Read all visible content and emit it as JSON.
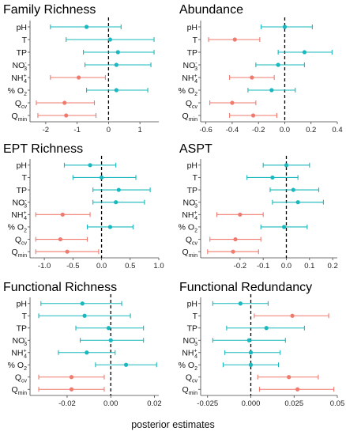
{
  "figure": {
    "xlabel": "posterior estimates"
  },
  "colors": {
    "positive": "#19b8be",
    "negative": "#f07a6e",
    "zero_line": "#000000",
    "axis": "#444444"
  },
  "chart_data": [
    {
      "type": "forest",
      "title": "Family Richness",
      "xlim": [
        -2.5,
        1.6
      ],
      "ticks": [
        -2,
        -1,
        0,
        1
      ],
      "tick_labels": [
        "-2",
        "-1",
        "0",
        "1"
      ],
      "rows": [
        {
          "label": "pH",
          "sub": "",
          "sup": "",
          "est": -0.7,
          "lo": -1.85,
          "hi": 0.4,
          "color": "positive"
        },
        {
          "label": "T",
          "sub": "",
          "sup": "",
          "est": 0.05,
          "lo": -1.35,
          "hi": 1.45,
          "color": "positive"
        },
        {
          "label": "TP",
          "sub": "",
          "sup": "",
          "est": 0.3,
          "lo": -0.8,
          "hi": 1.45,
          "color": "positive"
        },
        {
          "label": "NO",
          "sub": "3",
          "sup": "-",
          "est": 0.25,
          "lo": -0.75,
          "hi": 1.35,
          "color": "positive"
        },
        {
          "label": "NH",
          "sub": "4",
          "sup": "+",
          "est": -0.95,
          "lo": -1.85,
          "hi": -0.1,
          "color": "negative"
        },
        {
          "label": "% O",
          "sub": "2",
          "sup": "",
          "est": 0.25,
          "lo": -0.7,
          "hi": 1.25,
          "color": "positive"
        },
        {
          "label": "Q",
          "sub": "cv",
          "sup": "",
          "est": -1.4,
          "lo": -2.3,
          "hi": -0.45,
          "color": "negative"
        },
        {
          "label": "Q",
          "sub": "min",
          "sup": "",
          "est": -1.35,
          "lo": -2.25,
          "hi": -0.4,
          "color": "negative"
        }
      ]
    },
    {
      "type": "forest",
      "title": "Abundance",
      "xlim": [
        -0.64,
        0.4
      ],
      "ticks": [
        -0.6,
        -0.4,
        -0.2,
        0.0,
        0.2,
        0.4
      ],
      "tick_labels": [
        "-0.6",
        "-0.4",
        "-0.2",
        "0.0",
        "0.2",
        "0.4"
      ],
      "rows": [
        {
          "label": "pH",
          "sub": "",
          "sup": "",
          "est": 0.0,
          "lo": -0.18,
          "hi": 0.21,
          "color": "positive"
        },
        {
          "label": "T",
          "sub": "",
          "sup": "",
          "est": -0.38,
          "lo": -0.58,
          "hi": -0.19,
          "color": "negative"
        },
        {
          "label": "TP",
          "sub": "",
          "sup": "",
          "est": 0.15,
          "lo": -0.05,
          "hi": 0.36,
          "color": "positive"
        },
        {
          "label": "NO",
          "sub": "3",
          "sup": "-",
          "est": -0.05,
          "lo": -0.22,
          "hi": 0.15,
          "color": "positive"
        },
        {
          "label": "NH",
          "sub": "4",
          "sup": "+",
          "est": -0.25,
          "lo": -0.42,
          "hi": -0.08,
          "color": "negative"
        },
        {
          "label": "% O",
          "sub": "2",
          "sup": "",
          "est": -0.1,
          "lo": -0.28,
          "hi": 0.08,
          "color": "positive"
        },
        {
          "label": "Q",
          "sub": "cv",
          "sup": "",
          "est": -0.4,
          "lo": -0.57,
          "hi": -0.22,
          "color": "negative"
        },
        {
          "label": "Q",
          "sub": "min",
          "sup": "",
          "est": -0.24,
          "lo": -0.42,
          "hi": -0.06,
          "color": "negative"
        }
      ]
    },
    {
      "type": "forest",
      "title": "EPT Richness",
      "xlim": [
        -1.25,
        1.0
      ],
      "ticks": [
        -1.0,
        -0.5,
        0.0,
        0.5,
        1.0
      ],
      "tick_labels": [
        "-1.0",
        "-0.5",
        "0.0",
        "0.5",
        "1.0"
      ],
      "rows": [
        {
          "label": "pH",
          "sub": "",
          "sup": "",
          "est": -0.2,
          "lo": -0.65,
          "hi": 0.25,
          "color": "positive"
        },
        {
          "label": "T",
          "sub": "",
          "sup": "",
          "est": 0.0,
          "lo": -0.5,
          "hi": 0.6,
          "color": "positive"
        },
        {
          "label": "TP",
          "sub": "",
          "sup": "",
          "est": 0.3,
          "lo": -0.15,
          "hi": 0.85,
          "color": "positive"
        },
        {
          "label": "NO",
          "sub": "3",
          "sup": "-",
          "est": 0.25,
          "lo": -0.15,
          "hi": 0.75,
          "color": "positive"
        },
        {
          "label": "NH",
          "sub": "4",
          "sup": "+",
          "est": -0.68,
          "lo": -1.15,
          "hi": -0.2,
          "color": "negative"
        },
        {
          "label": "% O",
          "sub": "2",
          "sup": "",
          "est": 0.15,
          "lo": -0.25,
          "hi": 0.55,
          "color": "positive"
        },
        {
          "label": "Q",
          "sub": "cv",
          "sup": "",
          "est": -0.72,
          "lo": -1.15,
          "hi": -0.25,
          "color": "negative"
        },
        {
          "label": "Q",
          "sub": "min",
          "sup": "",
          "est": -0.6,
          "lo": -1.15,
          "hi": -0.05,
          "color": "negative"
        }
      ]
    },
    {
      "type": "forest",
      "title": "ASPT",
      "xlim": [
        -0.37,
        0.22
      ],
      "ticks": [
        -0.2,
        -0.1,
        0.0,
        0.1,
        0.2
      ],
      "tick_labels": [
        "-0.2",
        "-0.1",
        "0.0",
        "0.1",
        "0.2"
      ],
      "rows": [
        {
          "label": "pH",
          "sub": "",
          "sup": "",
          "est": 0.0,
          "lo": -0.1,
          "hi": 0.1,
          "color": "positive"
        },
        {
          "label": "T",
          "sub": "",
          "sup": "",
          "est": -0.06,
          "lo": -0.17,
          "hi": 0.05,
          "color": "positive"
        },
        {
          "label": "TP",
          "sub": "",
          "sup": "",
          "est": 0.03,
          "lo": -0.07,
          "hi": 0.14,
          "color": "positive"
        },
        {
          "label": "NO",
          "sub": "3",
          "sup": "-",
          "est": 0.05,
          "lo": -0.06,
          "hi": 0.16,
          "color": "positive"
        },
        {
          "label": "NH",
          "sub": "4",
          "sup": "+",
          "est": -0.2,
          "lo": -0.3,
          "hi": -0.1,
          "color": "negative"
        },
        {
          "label": "% O",
          "sub": "2",
          "sup": "",
          "est": -0.01,
          "lo": -0.11,
          "hi": 0.09,
          "color": "positive"
        },
        {
          "label": "Q",
          "sub": "cv",
          "sup": "",
          "est": -0.22,
          "lo": -0.33,
          "hi": -0.11,
          "color": "negative"
        },
        {
          "label": "Q",
          "sub": "min",
          "sup": "",
          "est": -0.23,
          "lo": -0.34,
          "hi": -0.12,
          "color": "negative"
        }
      ]
    },
    {
      "type": "forest",
      "title": "Functional Richness",
      "xlim": [
        -0.037,
        0.022
      ],
      "ticks": [
        -0.02,
        0.0,
        0.02
      ],
      "tick_labels": [
        "-0.02",
        "0.00",
        "0.02"
      ],
      "rows": [
        {
          "label": "pH",
          "sub": "",
          "sup": "",
          "est": -0.013,
          "lo": -0.032,
          "hi": 0.005,
          "color": "positive"
        },
        {
          "label": "T",
          "sub": "",
          "sup": "",
          "est": -0.012,
          "lo": -0.033,
          "hi": 0.009,
          "color": "positive"
        },
        {
          "label": "TP",
          "sub": "",
          "sup": "",
          "est": -0.001,
          "lo": -0.016,
          "hi": 0.015,
          "color": "positive"
        },
        {
          "label": "NO",
          "sub": "3",
          "sup": "-",
          "est": 0.0,
          "lo": -0.014,
          "hi": 0.015,
          "color": "positive"
        },
        {
          "label": "NH",
          "sub": "4",
          "sup": "+",
          "est": -0.011,
          "lo": -0.024,
          "hi": 0.002,
          "color": "positive"
        },
        {
          "label": "% O",
          "sub": "2",
          "sup": "",
          "est": 0.007,
          "lo": -0.007,
          "hi": 0.021,
          "color": "positive"
        },
        {
          "label": "Q",
          "sub": "cv",
          "sup": "",
          "est": -0.018,
          "lo": -0.033,
          "hi": -0.003,
          "color": "negative"
        },
        {
          "label": "Q",
          "sub": "min",
          "sup": "",
          "est": -0.018,
          "lo": -0.033,
          "hi": -0.003,
          "color": "negative"
        }
      ]
    },
    {
      "type": "forest",
      "title": "Functional Redundancy",
      "xlim": [
        -0.029,
        0.05
      ],
      "ticks": [
        -0.025,
        0.0,
        0.025,
        0.05
      ],
      "tick_labels": [
        "-0.025",
        "0.000",
        "0.025",
        "0.05"
      ],
      "rows": [
        {
          "label": "pH",
          "sub": "",
          "sup": "",
          "est": -0.006,
          "lo": -0.022,
          "hi": 0.01,
          "color": "positive"
        },
        {
          "label": "T",
          "sub": "",
          "sup": "",
          "est": 0.024,
          "lo": 0.002,
          "hi": 0.045,
          "color": "negative"
        },
        {
          "label": "TP",
          "sub": "",
          "sup": "",
          "est": 0.009,
          "lo": -0.014,
          "hi": 0.031,
          "color": "positive"
        },
        {
          "label": "NO",
          "sub": "3",
          "sup": "-",
          "est": -0.001,
          "lo": -0.022,
          "hi": 0.02,
          "color": "positive"
        },
        {
          "label": "NH",
          "sub": "4",
          "sup": "+",
          "est": 0.0,
          "lo": -0.015,
          "hi": 0.017,
          "color": "positive"
        },
        {
          "label": "% O",
          "sub": "2",
          "sup": "",
          "est": 0.0,
          "lo": -0.016,
          "hi": 0.016,
          "color": "positive"
        },
        {
          "label": "Q",
          "sub": "cv",
          "sup": "",
          "est": 0.022,
          "lo": 0.004,
          "hi": 0.039,
          "color": "negative"
        },
        {
          "label": "Q",
          "sub": "min",
          "sup": "",
          "est": 0.027,
          "lo": 0.005,
          "hi": 0.048,
          "color": "negative"
        }
      ]
    }
  ]
}
